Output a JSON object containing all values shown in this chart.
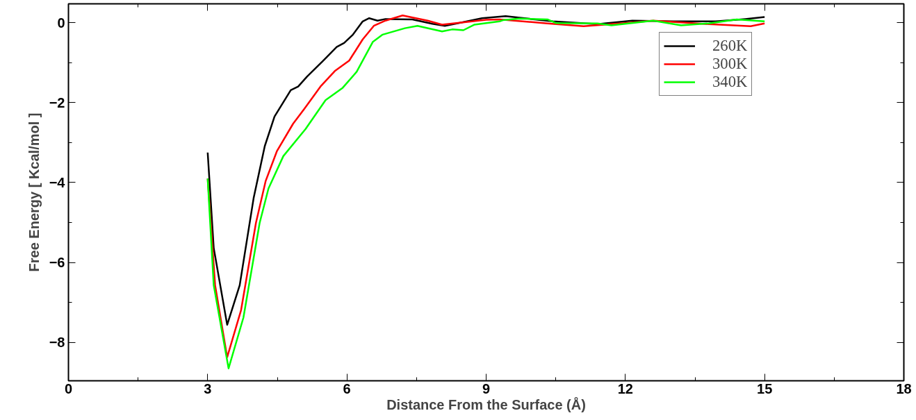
{
  "chart_data": {
    "type": "line",
    "xlabel": "Distance From the Surface (Å)",
    "ylabel": "Free Energy [ Kcal/mol ]",
    "xlim": [
      0,
      18
    ],
    "ylim": [
      -8.96,
      0.47
    ],
    "xticks": [
      0,
      3,
      6,
      9,
      12,
      15,
      18
    ],
    "yticks": [
      -8,
      -6,
      -4,
      -2,
      0
    ],
    "grid": false,
    "legend": "top right",
    "marker": "none",
    "line_style": "solid",
    "series": [
      {
        "name": "260K",
        "color": "#000000",
        "x": [
          3.0,
          3.13,
          3.42,
          3.69,
          3.99,
          4.23,
          4.44,
          4.79,
          4.95,
          5.14,
          5.49,
          5.78,
          5.94,
          6.13,
          6.34,
          6.48,
          6.66,
          6.83,
          7.41,
          7.84,
          8.11,
          8.37,
          8.91,
          9.29,
          9.42,
          10.44,
          11.4,
          12.15,
          13.05,
          13.95,
          14.58,
          15.0
        ],
        "values": [
          -3.25,
          -5.64,
          -7.56,
          -6.57,
          -4.39,
          -3.09,
          -2.35,
          -1.69,
          -1.6,
          -1.35,
          -0.95,
          -0.61,
          -0.51,
          -0.3,
          0.03,
          0.11,
          0.05,
          0.09,
          0.08,
          -0.03,
          -0.08,
          -0.02,
          0.11,
          0.15,
          0.16,
          0.03,
          -0.04,
          0.05,
          0.03,
          0.03,
          0.09,
          0.14
        ]
      },
      {
        "name": "300K",
        "color": "#ff0000",
        "x": [
          3.0,
          3.16,
          3.42,
          3.72,
          4.04,
          4.25,
          4.49,
          4.84,
          5.08,
          5.43,
          5.75,
          6.05,
          6.34,
          6.58,
          6.83,
          7.2,
          7.74,
          8.05,
          8.6,
          9.0,
          9.29,
          10.32,
          11.1,
          12.0,
          12.6,
          13.8,
          14.7,
          15.0
        ],
        "values": [
          -3.9,
          -6.57,
          -8.37,
          -7.19,
          -5.01,
          -3.96,
          -3.22,
          -2.53,
          -2.16,
          -1.6,
          -1.2,
          -0.95,
          -0.42,
          -0.08,
          0.05,
          0.18,
          0.05,
          -0.05,
          0.02,
          0.07,
          0.08,
          -0.02,
          -0.09,
          -0.01,
          0.05,
          -0.04,
          -0.09,
          -0.02
        ]
      },
      {
        "name": "340K",
        "color": "#00ff00",
        "x": [
          3.0,
          3.13,
          3.45,
          3.77,
          4.12,
          4.31,
          4.63,
          5.11,
          5.54,
          5.91,
          6.21,
          6.56,
          6.77,
          7.25,
          7.52,
          8.05,
          8.27,
          8.51,
          8.75,
          9.29,
          9.36,
          9.72,
          10.32,
          10.5,
          11.4,
          11.7,
          12.6,
          13.2,
          13.8,
          14.4,
          15.0
        ],
        "values": [
          -3.9,
          -6.57,
          -8.65,
          -7.38,
          -5.01,
          -4.15,
          -3.34,
          -2.66,
          -1.94,
          -1.63,
          -1.23,
          -0.48,
          -0.3,
          -0.14,
          -0.08,
          -0.22,
          -0.17,
          -0.19,
          -0.05,
          0.03,
          0.06,
          0.1,
          0.08,
          -0.01,
          -0.02,
          -0.07,
          0.05,
          -0.07,
          -0.02,
          0.08,
          0.03
        ]
      }
    ]
  }
}
